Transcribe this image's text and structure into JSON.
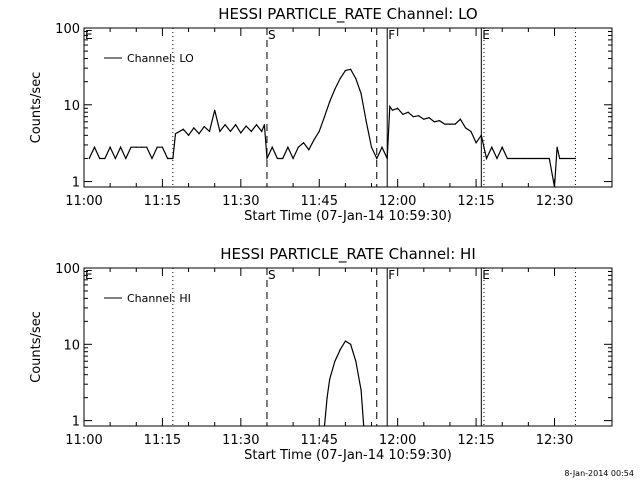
{
  "footer": {
    "stamp": "8-Jan-2014 00:54"
  },
  "chart_data": [
    {
      "type": "line",
      "title": "HESSI PARTICLE_RATE Channel: LO",
      "xlabel": "Start Time (07-Jan-14 10:59:30)",
      "ylabel": "Counts/sec",
      "y_scale": "log",
      "ylim": [
        0.85,
        100
      ],
      "x_range": [
        "11:00",
        "12:41"
      ],
      "x_ticks": [
        "11:00",
        "11:15",
        "11:30",
        "11:45",
        "12:00",
        "12:15",
        "12:30"
      ],
      "y_ticks": [
        "1",
        "10",
        "100"
      ],
      "legend": {
        "position": "top-left",
        "entries": [
          "Channel: LO"
        ]
      },
      "markers": [
        {
          "time": "11:00",
          "label": "E",
          "style": "dotted"
        },
        {
          "time": "11:17",
          "label": "",
          "style": "dotted"
        },
        {
          "time": "11:35",
          "label": "S",
          "style": "dashed"
        },
        {
          "time": "11:56",
          "label": "",
          "style": "dashed"
        },
        {
          "time": "11:58",
          "label": "F",
          "style": "solid"
        },
        {
          "time": "12:16",
          "label": "E",
          "style": "solid"
        },
        {
          "time": "12:16.5",
          "label": "",
          "style": "dotted"
        },
        {
          "time": "12:34",
          "label": "",
          "style": "dotted"
        }
      ],
      "series": [
        {
          "name": "Channel: LO",
          "points": [
            [
              "11:01",
              2
            ],
            [
              "11:02",
              2.8
            ],
            [
              "11:03",
              2
            ],
            [
              "11:04",
              2
            ],
            [
              "11:05",
              2.8
            ],
            [
              "11:06",
              2
            ],
            [
              "11:07",
              2.8
            ],
            [
              "11:08",
              2
            ],
            [
              "11:09",
              2.8
            ],
            [
              "11:10",
              2.8
            ],
            [
              "11:11",
              2.8
            ],
            [
              "11:12",
              2.8
            ],
            [
              "11:13",
              2
            ],
            [
              "11:14",
              2.8
            ],
            [
              "11:15",
              2.8
            ],
            [
              "11:16",
              2
            ],
            [
              "11:17",
              2
            ],
            [
              "11:17.5",
              4.2
            ],
            [
              "11:19",
              4.8
            ],
            [
              "11:20",
              4
            ],
            [
              "11:21",
              5
            ],
            [
              "11:22",
              4.2
            ],
            [
              "11:23",
              5.2
            ],
            [
              "11:24",
              4.5
            ],
            [
              "11:25",
              8.5
            ],
            [
              "11:26",
              4.5
            ],
            [
              "11:27",
              5.5
            ],
            [
              "11:28",
              4.5
            ],
            [
              "11:29",
              5.5
            ],
            [
              "11:30",
              4.3
            ],
            [
              "11:31",
              5.3
            ],
            [
              "11:32",
              4.5
            ],
            [
              "11:33",
              5.5
            ],
            [
              "11:34",
              4.5
            ],
            [
              "11:34.5",
              5.5
            ],
            [
              "11:35",
              2
            ],
            [
              "11:36",
              2.8
            ],
            [
              "11:37",
              2
            ],
            [
              "11:38",
              2
            ],
            [
              "11:39",
              2.8
            ],
            [
              "11:40",
              2
            ],
            [
              "11:41",
              2.8
            ],
            [
              "11:42",
              3.2
            ],
            [
              "11:43",
              2.6
            ],
            [
              "11:44",
              3.5
            ],
            [
              "11:45",
              4.5
            ],
            [
              "11:46",
              7
            ],
            [
              "11:47",
              11
            ],
            [
              "11:48",
              16
            ],
            [
              "11:49",
              22
            ],
            [
              "11:50",
              28
            ],
            [
              "11:51",
              29
            ],
            [
              "11:52",
              22
            ],
            [
              "11:53",
              14
            ],
            [
              "11:54",
              6
            ],
            [
              "11:55",
              2.8
            ],
            [
              "11:56",
              2
            ],
            [
              "11:57",
              2.8
            ],
            [
              "11:58",
              2
            ],
            [
              "11:58.5",
              9.5
            ],
            [
              "11:59",
              8.5
            ],
            [
              "12:00",
              9
            ],
            [
              "12:01",
              7.5
            ],
            [
              "12:02",
              8
            ],
            [
              "12:03",
              7
            ],
            [
              "12:04",
              7.2
            ],
            [
              "12:05",
              6.5
            ],
            [
              "12:06",
              6.8
            ],
            [
              "12:07",
              6
            ],
            [
              "12:08",
              6.2
            ],
            [
              "12:09",
              5.6
            ],
            [
              "12:10",
              5.6
            ],
            [
              "12:11",
              5.6
            ],
            [
              "12:12",
              6.5
            ],
            [
              "12:13",
              5
            ],
            [
              "12:14",
              4.5
            ],
            [
              "12:15",
              3.2
            ],
            [
              "12:16",
              4
            ],
            [
              "12:17",
              2
            ],
            [
              "12:18",
              2.8
            ],
            [
              "12:19",
              2
            ],
            [
              "12:20",
              2.8
            ],
            [
              "12:21",
              2
            ],
            [
              "12:22",
              2
            ],
            [
              "12:23",
              2
            ],
            [
              "12:24",
              2
            ],
            [
              "12:25",
              2
            ],
            [
              "12:26",
              2
            ],
            [
              "12:27",
              2
            ],
            [
              "12:28",
              2
            ],
            [
              "12:29",
              2
            ],
            [
              "12:30",
              0.85
            ],
            [
              "12:30.5",
              2.8
            ],
            [
              "12:31",
              2
            ],
            [
              "12:34",
              2
            ]
          ]
        }
      ]
    },
    {
      "type": "line",
      "title": "HESSI PARTICLE_RATE Channel: HI",
      "xlabel": "Start Time (07-Jan-14 10:59:30)",
      "ylabel": "Counts/sec",
      "y_scale": "log",
      "ylim": [
        0.85,
        100
      ],
      "x_range": [
        "11:00",
        "12:41"
      ],
      "x_ticks": [
        "11:00",
        "11:15",
        "11:30",
        "11:45",
        "12:00",
        "12:15",
        "12:30"
      ],
      "y_ticks": [
        "1",
        "10",
        "100"
      ],
      "legend": {
        "position": "top-left",
        "entries": [
          "Channel: HI"
        ]
      },
      "markers": [
        {
          "time": "11:00",
          "label": "E",
          "style": "dotted"
        },
        {
          "time": "11:17",
          "label": "",
          "style": "dotted"
        },
        {
          "time": "11:35",
          "label": "S",
          "style": "dashed"
        },
        {
          "time": "11:56",
          "label": "",
          "style": "dashed"
        },
        {
          "time": "11:58",
          "label": "F",
          "style": "solid"
        },
        {
          "time": "12:16",
          "label": "E",
          "style": "solid"
        },
        {
          "time": "12:16.5",
          "label": "",
          "style": "dotted"
        },
        {
          "time": "12:34",
          "label": "",
          "style": "dotted"
        }
      ],
      "series": [
        {
          "name": "Channel: HI",
          "points": [
            [
              "11:46",
              0.85
            ],
            [
              "11:46.5",
              2
            ],
            [
              "11:47",
              3.5
            ],
            [
              "11:48",
              6
            ],
            [
              "11:49",
              8.5
            ],
            [
              "11:50",
              11
            ],
            [
              "11:51",
              10
            ],
            [
              "11:52",
              6
            ],
            [
              "11:53",
              2.5
            ],
            [
              "11:53.5",
              0.85
            ]
          ]
        }
      ]
    }
  ]
}
